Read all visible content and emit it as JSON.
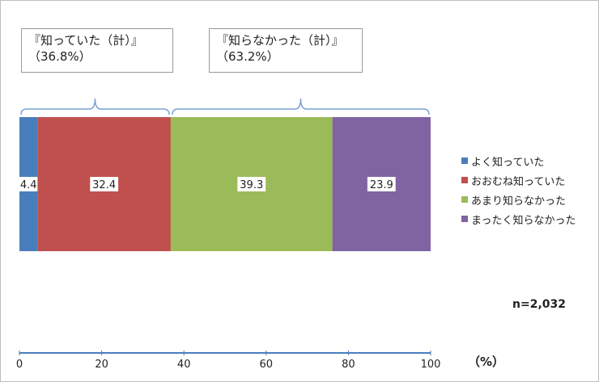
{
  "chart_data": {
    "type": "bar",
    "orientation": "horizontal-stacked",
    "series": [
      {
        "name": "よく知っていた",
        "value": 4.4,
        "color": "#4a7ebb"
      },
      {
        "name": "おおむね知っていた",
        "value": 32.4,
        "color": "#c0504d"
      },
      {
        "name": "あまり知らなかった",
        "value": 39.3,
        "color": "#9bbb59"
      },
      {
        "name": "まったく知らなかった",
        "value": 23.9,
        "color": "#8064a2"
      }
    ],
    "xlim": [
      0,
      100
    ],
    "xticks": [
      0,
      20,
      40,
      60,
      80,
      100
    ],
    "unit": "（%）",
    "n": "n=2,032",
    "legend_position": "right",
    "groups": [
      {
        "line1": "『知っていた（計）』",
        "line2": "（36.8%）",
        "from": 0,
        "to": 36.8
      },
      {
        "line1": "『知らなかった（計）』",
        "line2": "（63.2%）",
        "from": 36.8,
        "to": 100
      }
    ]
  }
}
